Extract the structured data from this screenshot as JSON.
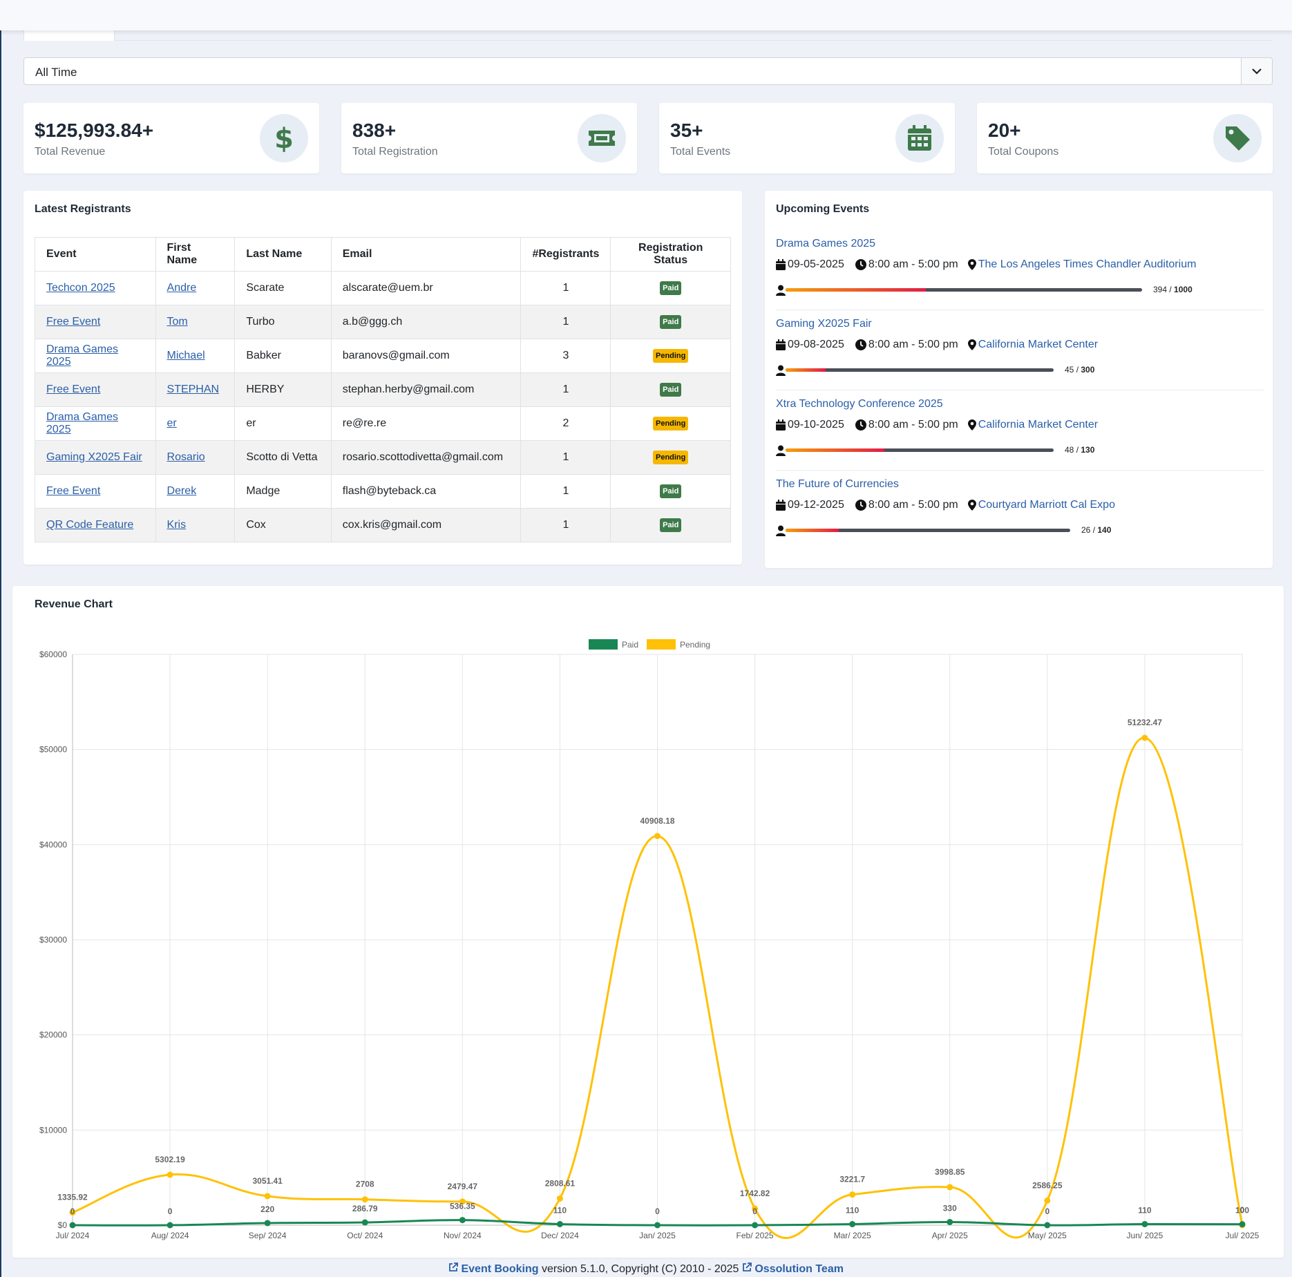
{
  "filter": {
    "selected": "All Time"
  },
  "stats": [
    {
      "value": "$125,993.84+",
      "label": "Total Revenue",
      "icon": "dollar-icon"
    },
    {
      "value": "838+",
      "label": "Total Registration",
      "icon": "ticket-icon"
    },
    {
      "value": "35+",
      "label": "Total Events",
      "icon": "calendar-icon"
    },
    {
      "value": "20+",
      "label": "Total Coupons",
      "icon": "tag-icon"
    }
  ],
  "latest": {
    "title": "Latest Registrants",
    "headers": [
      "Event",
      "First Name",
      "Last Name",
      "Email",
      "#Registrants",
      "Registration Status"
    ],
    "rows": [
      {
        "event": "Techcon 2025",
        "first": "Andre",
        "last": "Scarate",
        "email": "alscarate@uem.br",
        "count": "1",
        "status": "Paid"
      },
      {
        "event": "Free Event",
        "first": "Tom",
        "last": "Turbo",
        "email": "a.b@ggg.ch",
        "count": "1",
        "status": "Paid"
      },
      {
        "event": "Drama Games 2025",
        "first": "Michael",
        "last": "Babker",
        "email": "baranovs@gmail.com",
        "count": "3",
        "status": "Pending"
      },
      {
        "event": "Free Event",
        "first": "STEPHAN",
        "last": "HERBY",
        "email": "stephan.herby@gmail.com",
        "count": "1",
        "status": "Paid"
      },
      {
        "event": "Drama Games 2025",
        "first": "er",
        "last": "er",
        "email": "re@re.re",
        "count": "2",
        "status": "Pending"
      },
      {
        "event": "Gaming X2025 Fair",
        "first": "Rosario",
        "last": "Scotto di Vetta",
        "email": "rosario.scottodivetta@gmail.com",
        "count": "1",
        "status": "Pending"
      },
      {
        "event": "Free Event",
        "first": "Derek",
        "last": "Madge",
        "email": "flash@byteback.ca",
        "count": "1",
        "status": "Paid"
      },
      {
        "event": "QR Code Feature",
        "first": "Kris",
        "last": "Cox",
        "email": "cox.kris@gmail.com",
        "count": "1",
        "status": "Paid"
      }
    ]
  },
  "upcoming": {
    "title": "Upcoming Events",
    "events": [
      {
        "title": "Drama Games 2025",
        "date": "09-05-2025",
        "time": "8:00 am - 5:00 pm",
        "location": "The Los Angeles Times Chandler Auditorium",
        "registered": "394",
        "capacity": "1000",
        "fill_fraction": 0.394
      },
      {
        "title": "Gaming X2025 Fair",
        "date": "09-08-2025",
        "time": "8:00 am - 5:00 pm",
        "location": "California Market Center",
        "registered": "45",
        "capacity": "300",
        "fill_fraction": 0.15
      },
      {
        "title": "Xtra Technology Conference 2025",
        "date": "09-10-2025",
        "time": "8:00 am - 5:00 pm",
        "location": "California Market Center",
        "registered": "48",
        "capacity": "130",
        "fill_fraction": 0.369
      },
      {
        "title": "The Future of Currencies",
        "date": "09-12-2025",
        "time": "8:00 am - 5:00 pm",
        "location": "Courtyard Marriott Cal Expo",
        "registered": "26",
        "capacity": "140",
        "fill_fraction": 0.186
      }
    ]
  },
  "chart_title": "Revenue Chart",
  "chart_data": {
    "type": "line",
    "categories": [
      "Jul/ 2024",
      "Aug/ 2024",
      "Sep/ 2024",
      "Oct/ 2024",
      "Nov/ 2024",
      "Dec/ 2024",
      "Jan/ 2025",
      "Feb/ 2025",
      "Mar/ 2025",
      "Apr/ 2025",
      "May/ 2025",
      "Jun/ 2025",
      "Jul/ 2025"
    ],
    "series": [
      {
        "name": "Paid",
        "color": "#198754",
        "values": [
          0,
          0,
          220,
          286.79,
          536.35,
          110,
          0,
          0,
          110,
          330,
          0,
          110,
          100
        ]
      },
      {
        "name": "Pending",
        "color": "#ffc107",
        "values": [
          1335.92,
          5302.19,
          3051.41,
          2708,
          2479.47,
          2808.61,
          40908.18,
          1742.82,
          3221.7,
          3998.85,
          2586.25,
          51232.47,
          0
        ]
      }
    ],
    "ylim": [
      0,
      60000
    ],
    "yticks": [
      "$0",
      "$10000",
      "$20000",
      "$30000",
      "$40000",
      "$50000",
      "$60000"
    ],
    "legend": "top-center",
    "grid": true
  },
  "footer": {
    "product": "Event Booking",
    "text": " version 5.1.0, Copyright (C) 2010 - 2025 ",
    "team": "Ossolution Team"
  }
}
